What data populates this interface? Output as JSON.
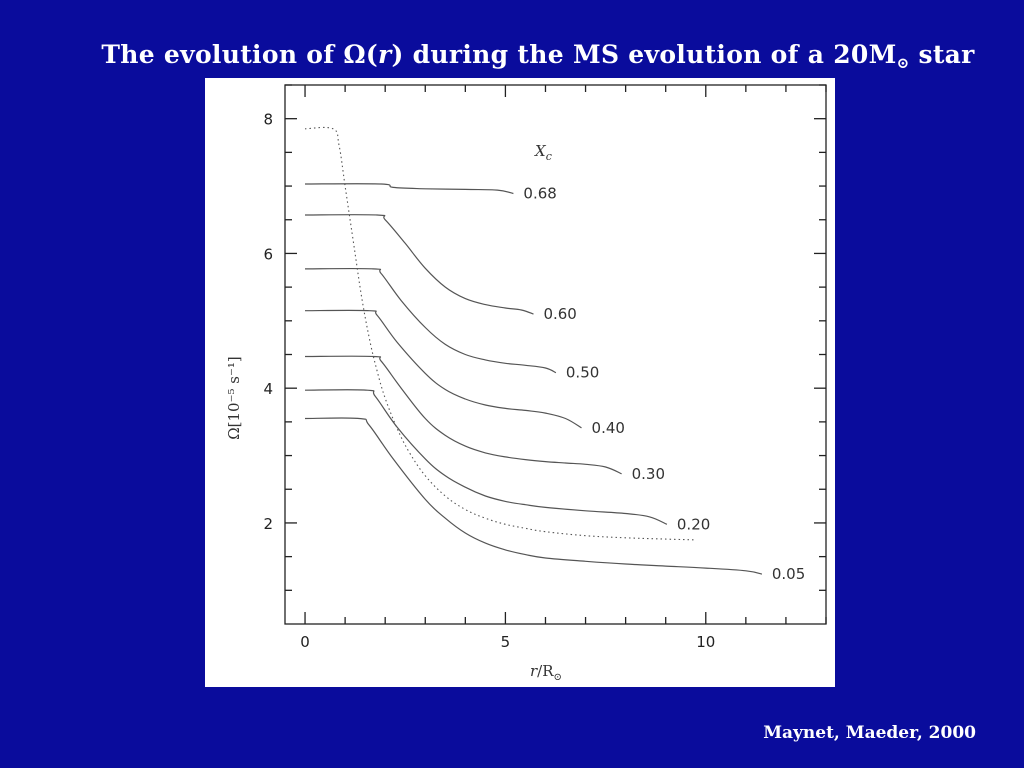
{
  "slide": {
    "title_prefix": "The evolution of ",
    "title_omega": "Ω(",
    "title_r": "r",
    "title_mid": ") during the MS evolution of a 20M",
    "title_sun": "⊙",
    "title_suffix": " star",
    "citation": "Maynet, Maeder, 2000"
  },
  "colors": {
    "background": "#0a0c9c",
    "panel": "#ffffff",
    "curve": "#555555",
    "axis": "#222222"
  },
  "chart_data": {
    "type": "line",
    "title": "The evolution of Ω(r) during the MS evolution of a 20M⊙ star",
    "xlabel": "r/R⊙",
    "xlabel_parts": {
      "var": "r",
      "slash": "/",
      "unit": "R",
      "sub": "⊙"
    },
    "ylabel": "Ω[10⁻⁵ s⁻¹]",
    "legend_title": "X",
    "legend_title_sub": "c",
    "xlim": [
      -0.5,
      13
    ],
    "ylim": [
      0.5,
      8.5
    ],
    "xticks": [
      0,
      5,
      10
    ],
    "xtick_labels": [
      "0",
      "5",
      "10"
    ],
    "x_minor_step": 1,
    "yticks": [
      2,
      4,
      6,
      8
    ],
    "ytick_labels": [
      "2",
      "4",
      "6",
      "8"
    ],
    "y_minor_step": 0.5,
    "grid": false,
    "series": [
      {
        "name": "0.68",
        "style": "solid",
        "x": [
          0,
          1.9,
          2.2,
          3,
          4,
          4.8,
          5.2
        ],
        "y": [
          7.03,
          7.03,
          6.98,
          6.96,
          6.95,
          6.94,
          6.89
        ]
      },
      {
        "name": "0.60",
        "style": "solid",
        "x": [
          0,
          1.8,
          2.0,
          2.5,
          3.0,
          3.5,
          4.0,
          4.5,
          5.0,
          5.4,
          5.7
        ],
        "y": [
          6.57,
          6.57,
          6.5,
          6.15,
          5.78,
          5.5,
          5.33,
          5.24,
          5.19,
          5.16,
          5.1
        ]
      },
      {
        "name": "0.50",
        "style": "solid",
        "x": [
          0,
          1.7,
          1.9,
          2.4,
          3.0,
          3.5,
          4.0,
          4.5,
          5.0,
          5.5,
          6.0,
          6.26
        ],
        "y": [
          5.77,
          5.77,
          5.7,
          5.3,
          4.9,
          4.65,
          4.5,
          4.42,
          4.37,
          4.34,
          4.3,
          4.23
        ]
      },
      {
        "name": "0.40",
        "style": "solid",
        "x": [
          0,
          1.6,
          1.8,
          2.3,
          3.0,
          3.5,
          4.0,
          4.5,
          5.0,
          5.5,
          6.0,
          6.5,
          6.9
        ],
        "y": [
          5.15,
          5.15,
          5.08,
          4.68,
          4.22,
          3.98,
          3.84,
          3.75,
          3.7,
          3.67,
          3.63,
          3.55,
          3.41
        ]
      },
      {
        "name": "0.30",
        "style": "solid",
        "x": [
          0,
          1.7,
          1.9,
          2.4,
          3.0,
          3.5,
          4.0,
          4.5,
          5.0,
          5.5,
          6.0,
          6.5,
          7.0,
          7.5,
          7.9
        ],
        "y": [
          4.47,
          4.47,
          4.4,
          4.0,
          3.55,
          3.3,
          3.14,
          3.04,
          2.98,
          2.94,
          2.91,
          2.89,
          2.87,
          2.83,
          2.73
        ]
      },
      {
        "name": "0.20",
        "style": "solid",
        "x": [
          0,
          1.55,
          1.75,
          2.3,
          3.0,
          3.5,
          4.0,
          4.5,
          5.0,
          5.5,
          6.0,
          7.0,
          8.0,
          8.6,
          9.03
        ],
        "y": [
          3.97,
          3.97,
          3.88,
          3.42,
          2.95,
          2.7,
          2.53,
          2.4,
          2.32,
          2.27,
          2.23,
          2.18,
          2.14,
          2.09,
          1.98
        ]
      },
      {
        "name": "0.05",
        "style": "solid",
        "x": [
          0,
          1.35,
          1.6,
          2.2,
          3.0,
          3.5,
          4.0,
          4.5,
          5.0,
          5.5,
          6.0,
          7.0,
          8.0,
          9.0,
          10.0,
          11.0,
          11.4
        ],
        "y": [
          3.55,
          3.55,
          3.45,
          2.95,
          2.35,
          2.07,
          1.85,
          1.7,
          1.6,
          1.53,
          1.48,
          1.43,
          1.39,
          1.36,
          1.33,
          1.29,
          1.24
        ]
      },
      {
        "name": "dotted",
        "style": "dotted",
        "x": [
          0,
          0.7,
          0.85,
          1.0,
          1.2,
          1.4,
          1.6,
          1.8,
          2.0,
          2.3,
          2.6,
          3.0,
          3.5,
          4.0,
          4.5,
          5.0,
          5.5,
          6.0,
          7.0,
          8.0,
          9.0,
          9.7
        ],
        "y": [
          7.85,
          7.85,
          7.6,
          7.0,
          6.2,
          5.4,
          4.75,
          4.25,
          3.85,
          3.4,
          3.05,
          2.7,
          2.4,
          2.2,
          2.07,
          1.98,
          1.92,
          1.87,
          1.81,
          1.78,
          1.76,
          1.75
        ]
      }
    ]
  }
}
